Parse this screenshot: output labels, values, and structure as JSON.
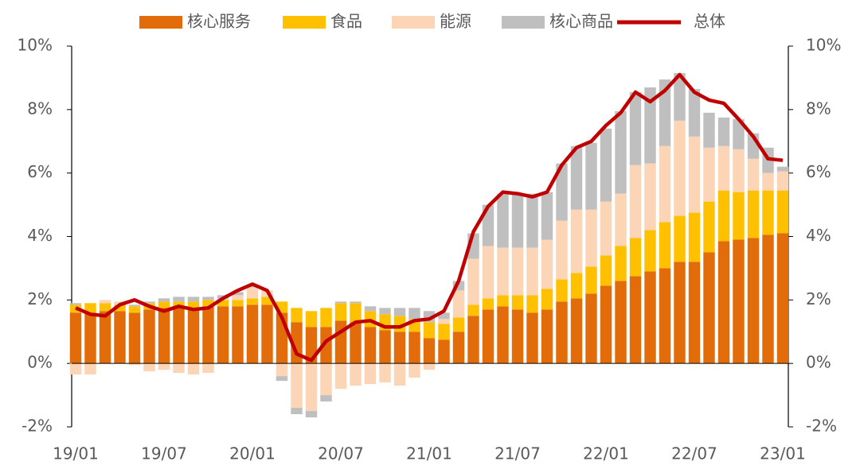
{
  "chart_data": {
    "type": "bar",
    "categories": [
      "19/01",
      null,
      null,
      null,
      null,
      null,
      "19/07",
      null,
      null,
      null,
      null,
      null,
      "20/01",
      null,
      null,
      null,
      null,
      null,
      "20/07",
      null,
      null,
      null,
      null,
      null,
      "21/01",
      null,
      null,
      null,
      null,
      null,
      "21/07",
      null,
      null,
      null,
      null,
      null,
      "22/01",
      null,
      null,
      null,
      null,
      null,
      "22/07",
      null,
      null,
      null,
      null,
      null,
      "23/01"
    ],
    "series": [
      {
        "name": "核心服务",
        "color": "#E36C0A",
        "values": [
          1.6,
          1.6,
          1.65,
          1.65,
          1.6,
          1.7,
          1.75,
          1.75,
          1.75,
          1.8,
          1.8,
          1.8,
          1.85,
          1.85,
          1.6,
          1.3,
          1.15,
          1.15,
          1.35,
          1.3,
          1.15,
          1.05,
          1.0,
          1.0,
          0.8,
          0.75,
          1.0,
          1.5,
          1.7,
          1.8,
          1.7,
          1.6,
          1.7,
          1.95,
          2.05,
          2.2,
          2.45,
          2.6,
          2.75,
          2.9,
          3.0,
          3.2,
          3.2,
          3.5,
          3.85,
          3.9,
          3.95,
          4.05,
          4.1
        ]
      },
      {
        "name": "食品",
        "color": "#FFC000",
        "values": [
          0.25,
          0.3,
          0.25,
          0.2,
          0.2,
          0.2,
          0.2,
          0.2,
          0.2,
          0.2,
          0.2,
          0.2,
          0.2,
          0.25,
          0.35,
          0.45,
          0.5,
          0.6,
          0.55,
          0.6,
          0.5,
          0.5,
          0.5,
          0.4,
          0.5,
          0.5,
          0.45,
          0.35,
          0.35,
          0.35,
          0.45,
          0.55,
          0.65,
          0.7,
          0.8,
          0.85,
          0.95,
          1.1,
          1.2,
          1.3,
          1.45,
          1.45,
          1.55,
          1.6,
          1.6,
          1.5,
          1.5,
          1.4,
          1.35
        ]
      },
      {
        "name": "能源",
        "color": "#FBD5B5",
        "values": [
          -0.35,
          -0.35,
          0.1,
          0.1,
          -0.05,
          -0.25,
          -0.2,
          -0.3,
          -0.35,
          -0.3,
          0.05,
          0.15,
          0.35,
          0.2,
          -0.4,
          -1.4,
          -1.5,
          -1.0,
          -0.8,
          -0.7,
          -0.65,
          -0.6,
          -0.7,
          -0.45,
          -0.2,
          0.15,
          0.85,
          1.45,
          1.65,
          1.5,
          1.5,
          1.5,
          1.55,
          1.85,
          2.0,
          1.8,
          1.7,
          1.65,
          2.3,
          2.1,
          2.4,
          3.0,
          2.4,
          1.7,
          1.4,
          1.35,
          1.0,
          0.55,
          0.6
        ]
      },
      {
        "name": "核心商品",
        "color": "#BFBFBF",
        "values": [
          0.05,
          0,
          0,
          0,
          0.05,
          0.05,
          0.1,
          0.15,
          0.15,
          0.1,
          0.1,
          0.1,
          0.05,
          0,
          -0.15,
          -0.2,
          -0.2,
          -0.2,
          0.05,
          0.05,
          0.15,
          0.2,
          0.25,
          0.35,
          0.35,
          0.2,
          0.3,
          0.8,
          1.3,
          1.7,
          1.7,
          1.7,
          1.5,
          1.8,
          2.0,
          2.1,
          2.3,
          2.6,
          2.3,
          2.4,
          2.1,
          1.5,
          1.5,
          1.1,
          0.9,
          0.95,
          0.8,
          0.8,
          0.15
        ]
      },
      {
        "name": "总体",
        "color": "#C00000",
        "type": "line",
        "axis": "y2",
        "values": [
          1.75,
          1.55,
          1.5,
          1.85,
          2.0,
          1.8,
          1.65,
          1.8,
          1.7,
          1.75,
          2.05,
          2.3,
          2.5,
          2.3,
          1.45,
          0.3,
          0.1,
          0.7,
          1.0,
          1.3,
          1.35,
          1.15,
          1.15,
          1.35,
          1.4,
          1.65,
          2.6,
          4.15,
          4.95,
          5.4,
          5.35,
          5.25,
          5.4,
          6.25,
          6.8,
          7.0,
          7.5,
          7.9,
          8.55,
          8.25,
          8.6,
          9.1,
          8.55,
          8.3,
          8.2,
          7.7,
          7.15,
          6.45,
          6.4
        ]
      }
    ],
    "ylim": [
      -2,
      10
    ],
    "yticks": [
      {
        "value": -2,
        "label": "-2%"
      },
      {
        "value": 0,
        "label": "0%"
      },
      {
        "value": 2,
        "label": "2%"
      },
      {
        "value": 4,
        "label": "4%"
      },
      {
        "value": 6,
        "label": "6%"
      },
      {
        "value": 8,
        "label": "8%"
      },
      {
        "value": 10,
        "label": "10%"
      }
    ],
    "y2lim": [
      -2,
      10
    ],
    "y2ticks": [
      {
        "value": -2,
        "label": "-2%"
      },
      {
        "value": 0,
        "label": "0%"
      },
      {
        "value": 2,
        "label": "2%"
      },
      {
        "value": 4,
        "label": "4%"
      },
      {
        "value": 6,
        "label": "6%"
      },
      {
        "value": 8,
        "label": "8%"
      },
      {
        "value": 10,
        "label": "10%"
      }
    ],
    "legend": "top"
  }
}
